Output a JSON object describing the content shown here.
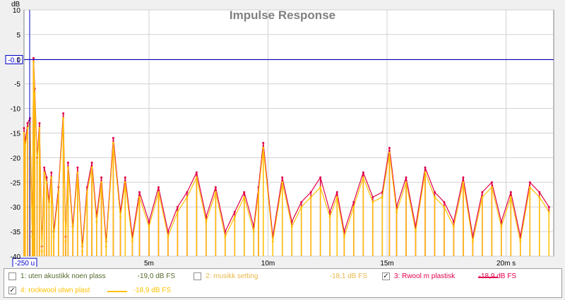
{
  "chart_data": {
    "type": "line",
    "title": "Impulse Response",
    "ylabel": "dB",
    "xunit": "s",
    "xlim": [
      -0.25,
      22.0
    ],
    "ylim": [
      -40,
      10
    ],
    "grid": true,
    "x_ticks": [
      {
        "value": 5,
        "label": "5m"
      },
      {
        "value": 10,
        "label": "10m"
      },
      {
        "value": 15,
        "label": "15m"
      },
      {
        "value": 20,
        "label": "20m s"
      }
    ],
    "y_ticks": [
      {
        "value": 10,
        "label": "10"
      },
      {
        "value": 5,
        "label": "5"
      },
      {
        "value": 0,
        "label": "0"
      },
      {
        "value": -5,
        "label": "-5"
      },
      {
        "value": -10,
        "label": "-10"
      },
      {
        "value": -15,
        "label": "-15"
      },
      {
        "value": -20,
        "label": "-20"
      },
      {
        "value": -25,
        "label": "-25"
      },
      {
        "value": -30,
        "label": "-30"
      },
      {
        "value": -35,
        "label": "-35"
      },
      {
        "value": -40,
        "label": "-40"
      }
    ],
    "y_marker": {
      "value": -0.1,
      "label": "-0.1"
    },
    "x_marker": {
      "value": -0.25,
      "label": "-250 u"
    },
    "series": [
      {
        "name": "3: Rwool m plastisk",
        "color": "#e0004a",
        "x": [
          -0.25,
          -0.2,
          -0.1,
          0.0,
          0.1,
          0.15,
          0.2,
          0.3,
          0.4,
          0.5,
          0.6,
          0.7,
          0.8,
          0.9,
          1.0,
          1.2,
          1.4,
          1.5,
          1.6,
          1.8,
          2.0,
          2.2,
          2.4,
          2.6,
          2.8,
          3.0,
          3.2,
          3.5,
          3.8,
          4.0,
          4.3,
          4.6,
          5.0,
          5.4,
          5.8,
          6.2,
          6.6,
          7.0,
          7.4,
          7.8,
          8.2,
          8.6,
          9.0,
          9.4,
          9.6,
          9.8,
          10.2,
          10.6,
          11.0,
          11.4,
          11.8,
          12.2,
          12.6,
          12.9,
          13.2,
          13.6,
          14.0,
          14.4,
          14.8,
          15.1,
          15.4,
          15.8,
          16.2,
          16.6,
          17.0,
          17.4,
          17.8,
          18.2,
          18.6,
          19.0,
          19.4,
          19.8,
          20.2,
          20.6,
          21.0,
          21.4,
          21.8
        ],
        "y": [
          -14,
          -17,
          -13,
          -12,
          -35,
          0.2,
          -6,
          -20,
          -13,
          -38,
          -22,
          -24,
          -29,
          -23,
          -35,
          -26,
          -11,
          -36,
          -21,
          -34,
          -22,
          -38,
          -26,
          -21,
          -32,
          -24,
          -37,
          -16,
          -31,
          -24,
          -36,
          -27,
          -33,
          -26,
          -35,
          -30,
          -27,
          -23,
          -32,
          -26,
          -35,
          -31,
          -27,
          -34,
          -26,
          -17,
          -36,
          -24,
          -33,
          -29,
          -27,
          -24,
          -31,
          -27,
          -35,
          -29,
          -23,
          -28,
          -27,
          -18,
          -30,
          -24,
          -34,
          -22,
          -27,
          -29,
          -33,
          -24,
          -36,
          -27,
          -25,
          -33,
          -27,
          -36,
          -25,
          -27,
          -30
        ]
      },
      {
        "name": "4: rockwool utwn plast",
        "color": "#ffc000",
        "x": [
          -0.25,
          -0.2,
          -0.1,
          0.0,
          0.1,
          0.15,
          0.2,
          0.3,
          0.4,
          0.5,
          0.6,
          0.7,
          0.8,
          0.9,
          1.0,
          1.2,
          1.4,
          1.5,
          1.6,
          1.8,
          2.0,
          2.2,
          2.4,
          2.6,
          2.8,
          3.0,
          3.2,
          3.5,
          3.8,
          4.0,
          4.3,
          4.6,
          5.0,
          5.4,
          5.8,
          6.2,
          6.6,
          7.0,
          7.4,
          7.8,
          8.2,
          8.6,
          9.0,
          9.4,
          9.6,
          9.8,
          10.2,
          10.6,
          11.0,
          11.4,
          11.8,
          12.2,
          12.6,
          12.9,
          13.2,
          13.6,
          14.0,
          14.4,
          14.8,
          15.1,
          15.4,
          15.8,
          16.2,
          16.6,
          17.0,
          17.4,
          17.8,
          18.2,
          18.6,
          19.0,
          19.4,
          19.8,
          20.2,
          20.6,
          21.0,
          21.4,
          21.8
        ],
        "y": [
          -15,
          -18,
          -14,
          -13,
          -36,
          -0.5,
          -7,
          -21,
          -14,
          -39,
          -23,
          -25,
          -30,
          -24,
          -36,
          -27,
          -12,
          -37,
          -22,
          -35,
          -23,
          -39,
          -27,
          -22,
          -33,
          -25,
          -38,
          -17,
          -32,
          -25,
          -37,
          -28,
          -34,
          -27,
          -36,
          -31,
          -28,
          -24,
          -33,
          -27,
          -36,
          -32,
          -28,
          -35,
          -27,
          -18,
          -37,
          -25,
          -34,
          -30,
          -28,
          -26,
          -32,
          -28,
          -36,
          -30,
          -24,
          -29,
          -28,
          -19,
          -31,
          -25,
          -35,
          -23,
          -28,
          -30,
          -34,
          -25,
          -37,
          -28,
          -26,
          -34,
          -28,
          -37,
          -26,
          -28,
          -31
        ]
      }
    ]
  },
  "legend": [
    {
      "name": "1: uten akustikk noen plass",
      "value": "-19,0 dB FS",
      "checked": false,
      "color": "#556b2f",
      "line_color": "",
      "name_color": "#556b2f",
      "value_color": "#556b2f"
    },
    {
      "name": "2: musikk setting",
      "value": "-18,1 dB FS",
      "checked": false,
      "color": "#e8b84a",
      "line_color": "",
      "name_color": "#e8b84a",
      "value_color": "#e8b84a"
    },
    {
      "name": "3: Rwool m plastisk",
      "value": "-18,9 dB FS",
      "checked": true,
      "color": "#e0004a",
      "line_color": "#e0004a",
      "name_color": "#e0004a",
      "value_color": "#e0004a"
    },
    {
      "name": "4: rockwool utwn plast",
      "value": "-18,9 dB FS",
      "checked": true,
      "color": "#ffc000",
      "line_color": "#ffc000",
      "name_color": "#ffc000",
      "value_color": "#ffc000"
    }
  ],
  "colors": {
    "plot_bg": "#ffffff",
    "grid": "#d0d0d0",
    "marker": "#0000cc"
  }
}
